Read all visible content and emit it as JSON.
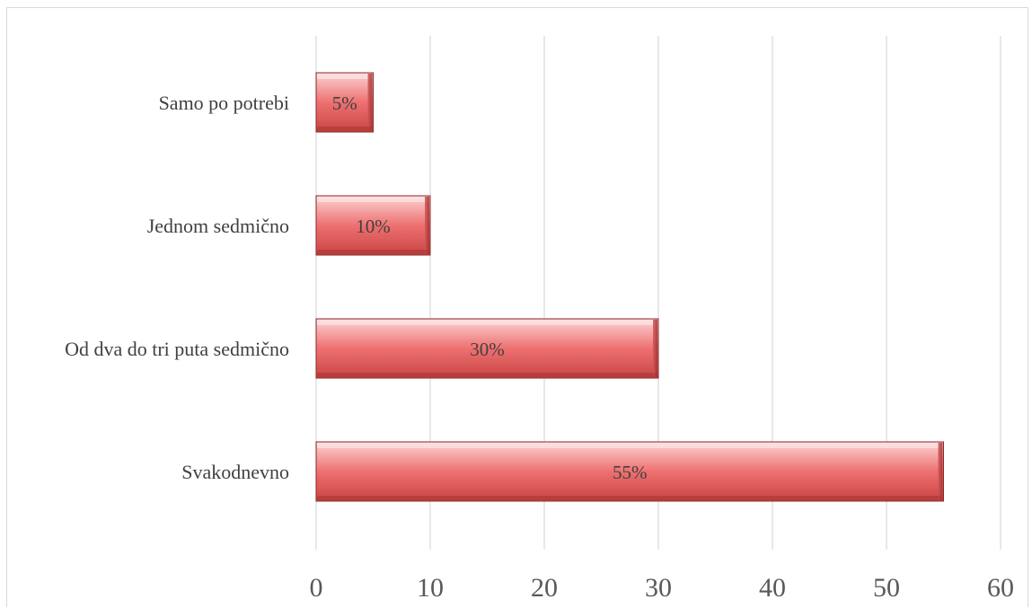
{
  "chart_data": {
    "type": "bar",
    "orientation": "horizontal",
    "categories": [
      "Samo po potrebi",
      "Jednom sedmično",
      "Od dva do tri puta sedmično",
      "Svakodnevno"
    ],
    "values": [
      5,
      10,
      30,
      55
    ],
    "data_labels": [
      "5%",
      "10%",
      "30%",
      "55%"
    ],
    "xlim": [
      0,
      60
    ],
    "xticks": [
      0,
      10,
      20,
      30,
      40,
      50,
      60
    ],
    "xtick_labels": [
      "0",
      "10",
      "20",
      "30",
      "40",
      "50",
      "60"
    ],
    "grid": "vertical",
    "legend": "none",
    "colors": {
      "bar_fill": "#ee6e6e",
      "bar_light": "#f8c0c0",
      "bar_dark": "#c84444",
      "bar_edge": "#8b2a2a",
      "grid": "#d9d9d9"
    }
  }
}
